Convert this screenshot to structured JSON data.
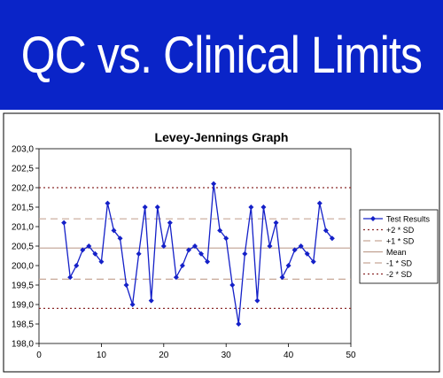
{
  "banner": {
    "title": "QC vs. Clinical Limits",
    "background_color": "#0a24c8"
  },
  "chart_data": {
    "type": "line",
    "title": "Levey-Jennings Graph",
    "xlabel": "",
    "ylabel": "",
    "xlim": [
      0,
      50
    ],
    "ylim": [
      198.0,
      203.0
    ],
    "x_ticks": [
      "0",
      "10",
      "20",
      "30",
      "40",
      "50"
    ],
    "y_ticks": [
      "198,0",
      "198,5",
      "199,0",
      "199,5",
      "200,0",
      "200,5",
      "201,0",
      "201,5",
      "202,0",
      "202,5",
      "203,0"
    ],
    "grid": false,
    "legend_position": "right",
    "series": [
      {
        "name": "Test Results",
        "color": "#1420c8",
        "marker": "diamond",
        "x": [
          4,
          5,
          6,
          7,
          8,
          9,
          10,
          11,
          12,
          13,
          14,
          15,
          16,
          17,
          18,
          19,
          20,
          21,
          22,
          23,
          24,
          25,
          26,
          27,
          28,
          29,
          30,
          31,
          32,
          33,
          34,
          35,
          36,
          37,
          38,
          39,
          40,
          41,
          42,
          43,
          44,
          45,
          46,
          47
        ],
        "y": [
          201.1,
          199.7,
          200.0,
          200.4,
          200.5,
          200.3,
          200.1,
          201.6,
          200.9,
          200.7,
          199.5,
          199.0,
          200.3,
          201.5,
          199.1,
          201.5,
          200.5,
          201.1,
          199.7,
          200.0,
          200.4,
          200.5,
          200.3,
          200.1,
          202.1,
          200.9,
          200.7,
          199.5,
          198.5,
          200.3,
          201.5,
          199.1,
          201.5,
          200.5,
          201.1,
          199.7,
          200.0,
          200.4,
          200.5,
          200.3,
          200.1,
          201.6,
          200.9,
          200.7
        ]
      }
    ],
    "reference_lines": [
      {
        "name": "+2 * SD",
        "value": 202.0,
        "color": "#8b2a2a",
        "style": "dotted"
      },
      {
        "name": "+1 * SD",
        "value": 201.2,
        "color": "#c8a898",
        "style": "dashed"
      },
      {
        "name": "Mean",
        "value": 200.45,
        "color": "#c0a090",
        "style": "solid"
      },
      {
        "name": "-1 * SD",
        "value": 199.65,
        "color": "#c8a898",
        "style": "dashed"
      },
      {
        "name": "-2 * SD",
        "value": 198.9,
        "color": "#8b2a2a",
        "style": "dotted"
      }
    ]
  }
}
